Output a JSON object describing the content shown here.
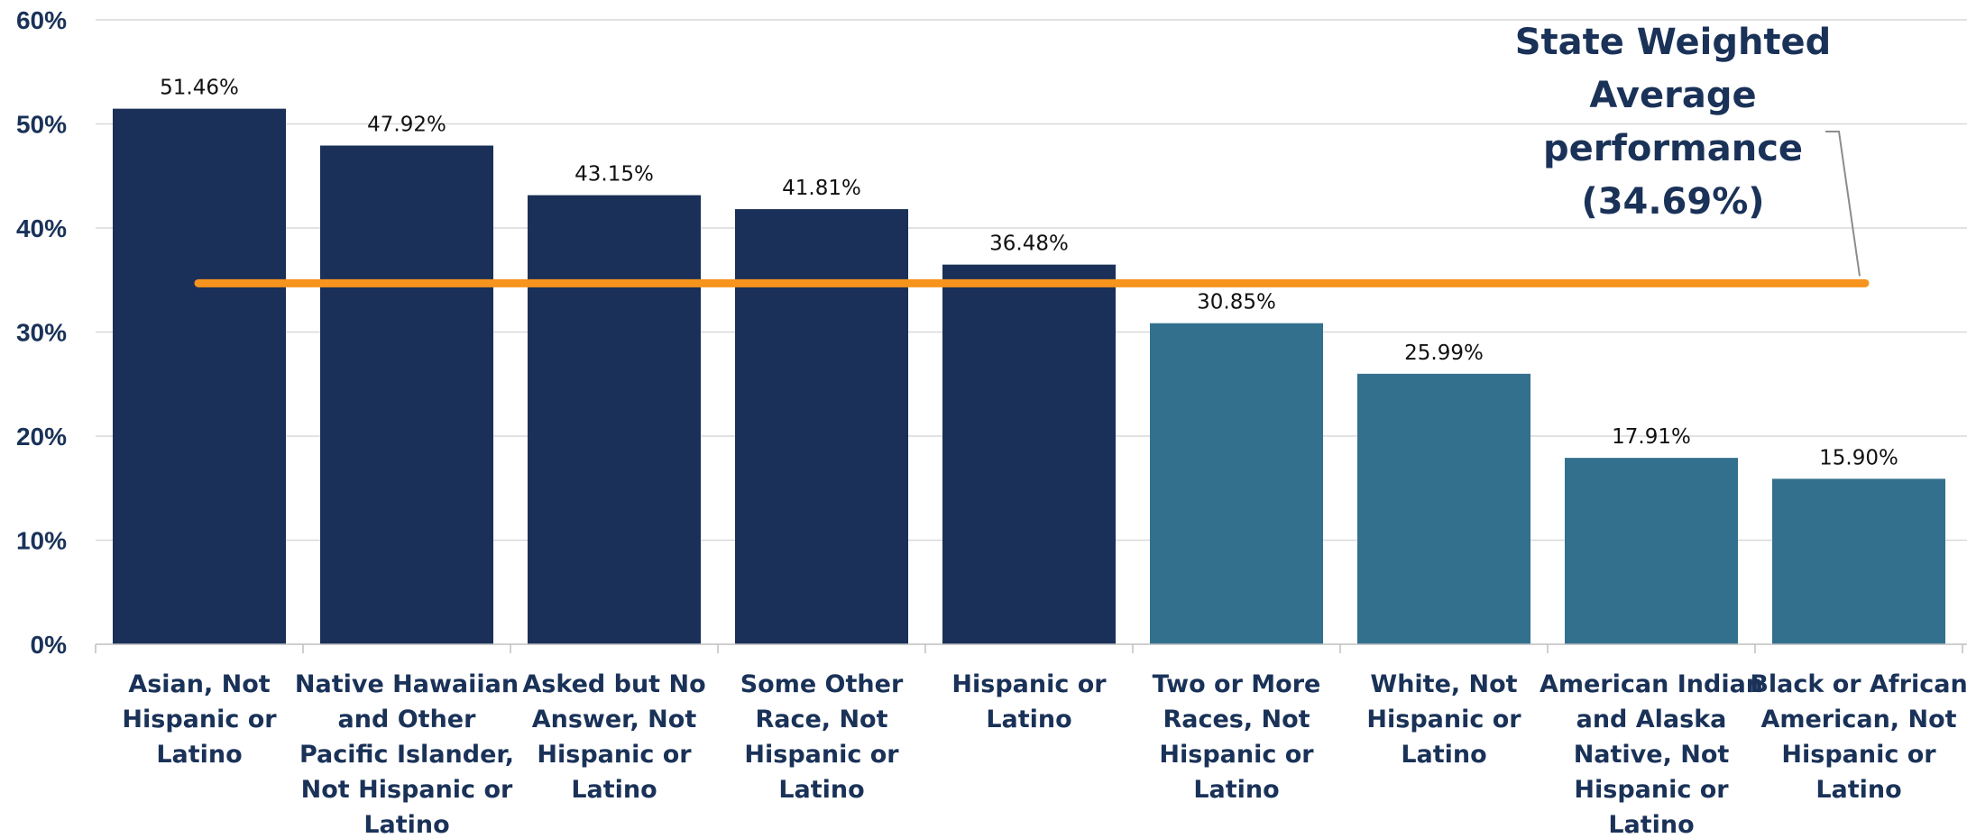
{
  "chart_data": {
    "type": "bar",
    "categories": [
      [
        "Asian, Not",
        "Hispanic or",
        "Latino"
      ],
      [
        "Native Hawaiian",
        "and Other",
        "Pacific Islander,",
        "Not Hispanic or",
        "Latino"
      ],
      [
        "Asked but No",
        "Answer, Not",
        "Hispanic or",
        "Latino"
      ],
      [
        "Some Other",
        "Race, Not",
        "Hispanic or",
        "Latino"
      ],
      [
        "Hispanic or",
        "Latino"
      ],
      [
        "Two or More",
        "Races, Not",
        "Hispanic or",
        "Latino"
      ],
      [
        "White, Not",
        "Hispanic or",
        "Latino"
      ],
      [
        "American Indian",
        "and Alaska",
        "Native, Not",
        "Hispanic or",
        "Latino"
      ],
      [
        "Black or African",
        "American, Not",
        "Hispanic or",
        "Latino"
      ]
    ],
    "values": [
      51.46,
      47.92,
      43.15,
      41.81,
      36.48,
      30.85,
      25.99,
      17.91,
      15.9
    ],
    "data_labels": [
      "51.46%",
      "47.92%",
      "43.15%",
      "41.81%",
      "36.48%",
      "30.85%",
      "25.99%",
      "17.91%",
      "15.90%"
    ],
    "ylim": [
      0,
      60
    ],
    "yticks": [
      0,
      10,
      20,
      30,
      40,
      50,
      60
    ],
    "ytick_labels": [
      "0%",
      "10%",
      "20%",
      "30%",
      "40%",
      "50%",
      "60%"
    ],
    "grid": true,
    "reference_line": {
      "value": 34.69,
      "color": "#f7941d",
      "annotation": [
        "State Weighted",
        "Average",
        "performance",
        "(34.69%)"
      ]
    },
    "colors": {
      "above_average": "#1a3058",
      "below_average": "#33708e",
      "grid": "#d9d9d9",
      "text": "#1a3258"
    },
    "xlabel": "",
    "ylabel": "",
    "title": ""
  }
}
